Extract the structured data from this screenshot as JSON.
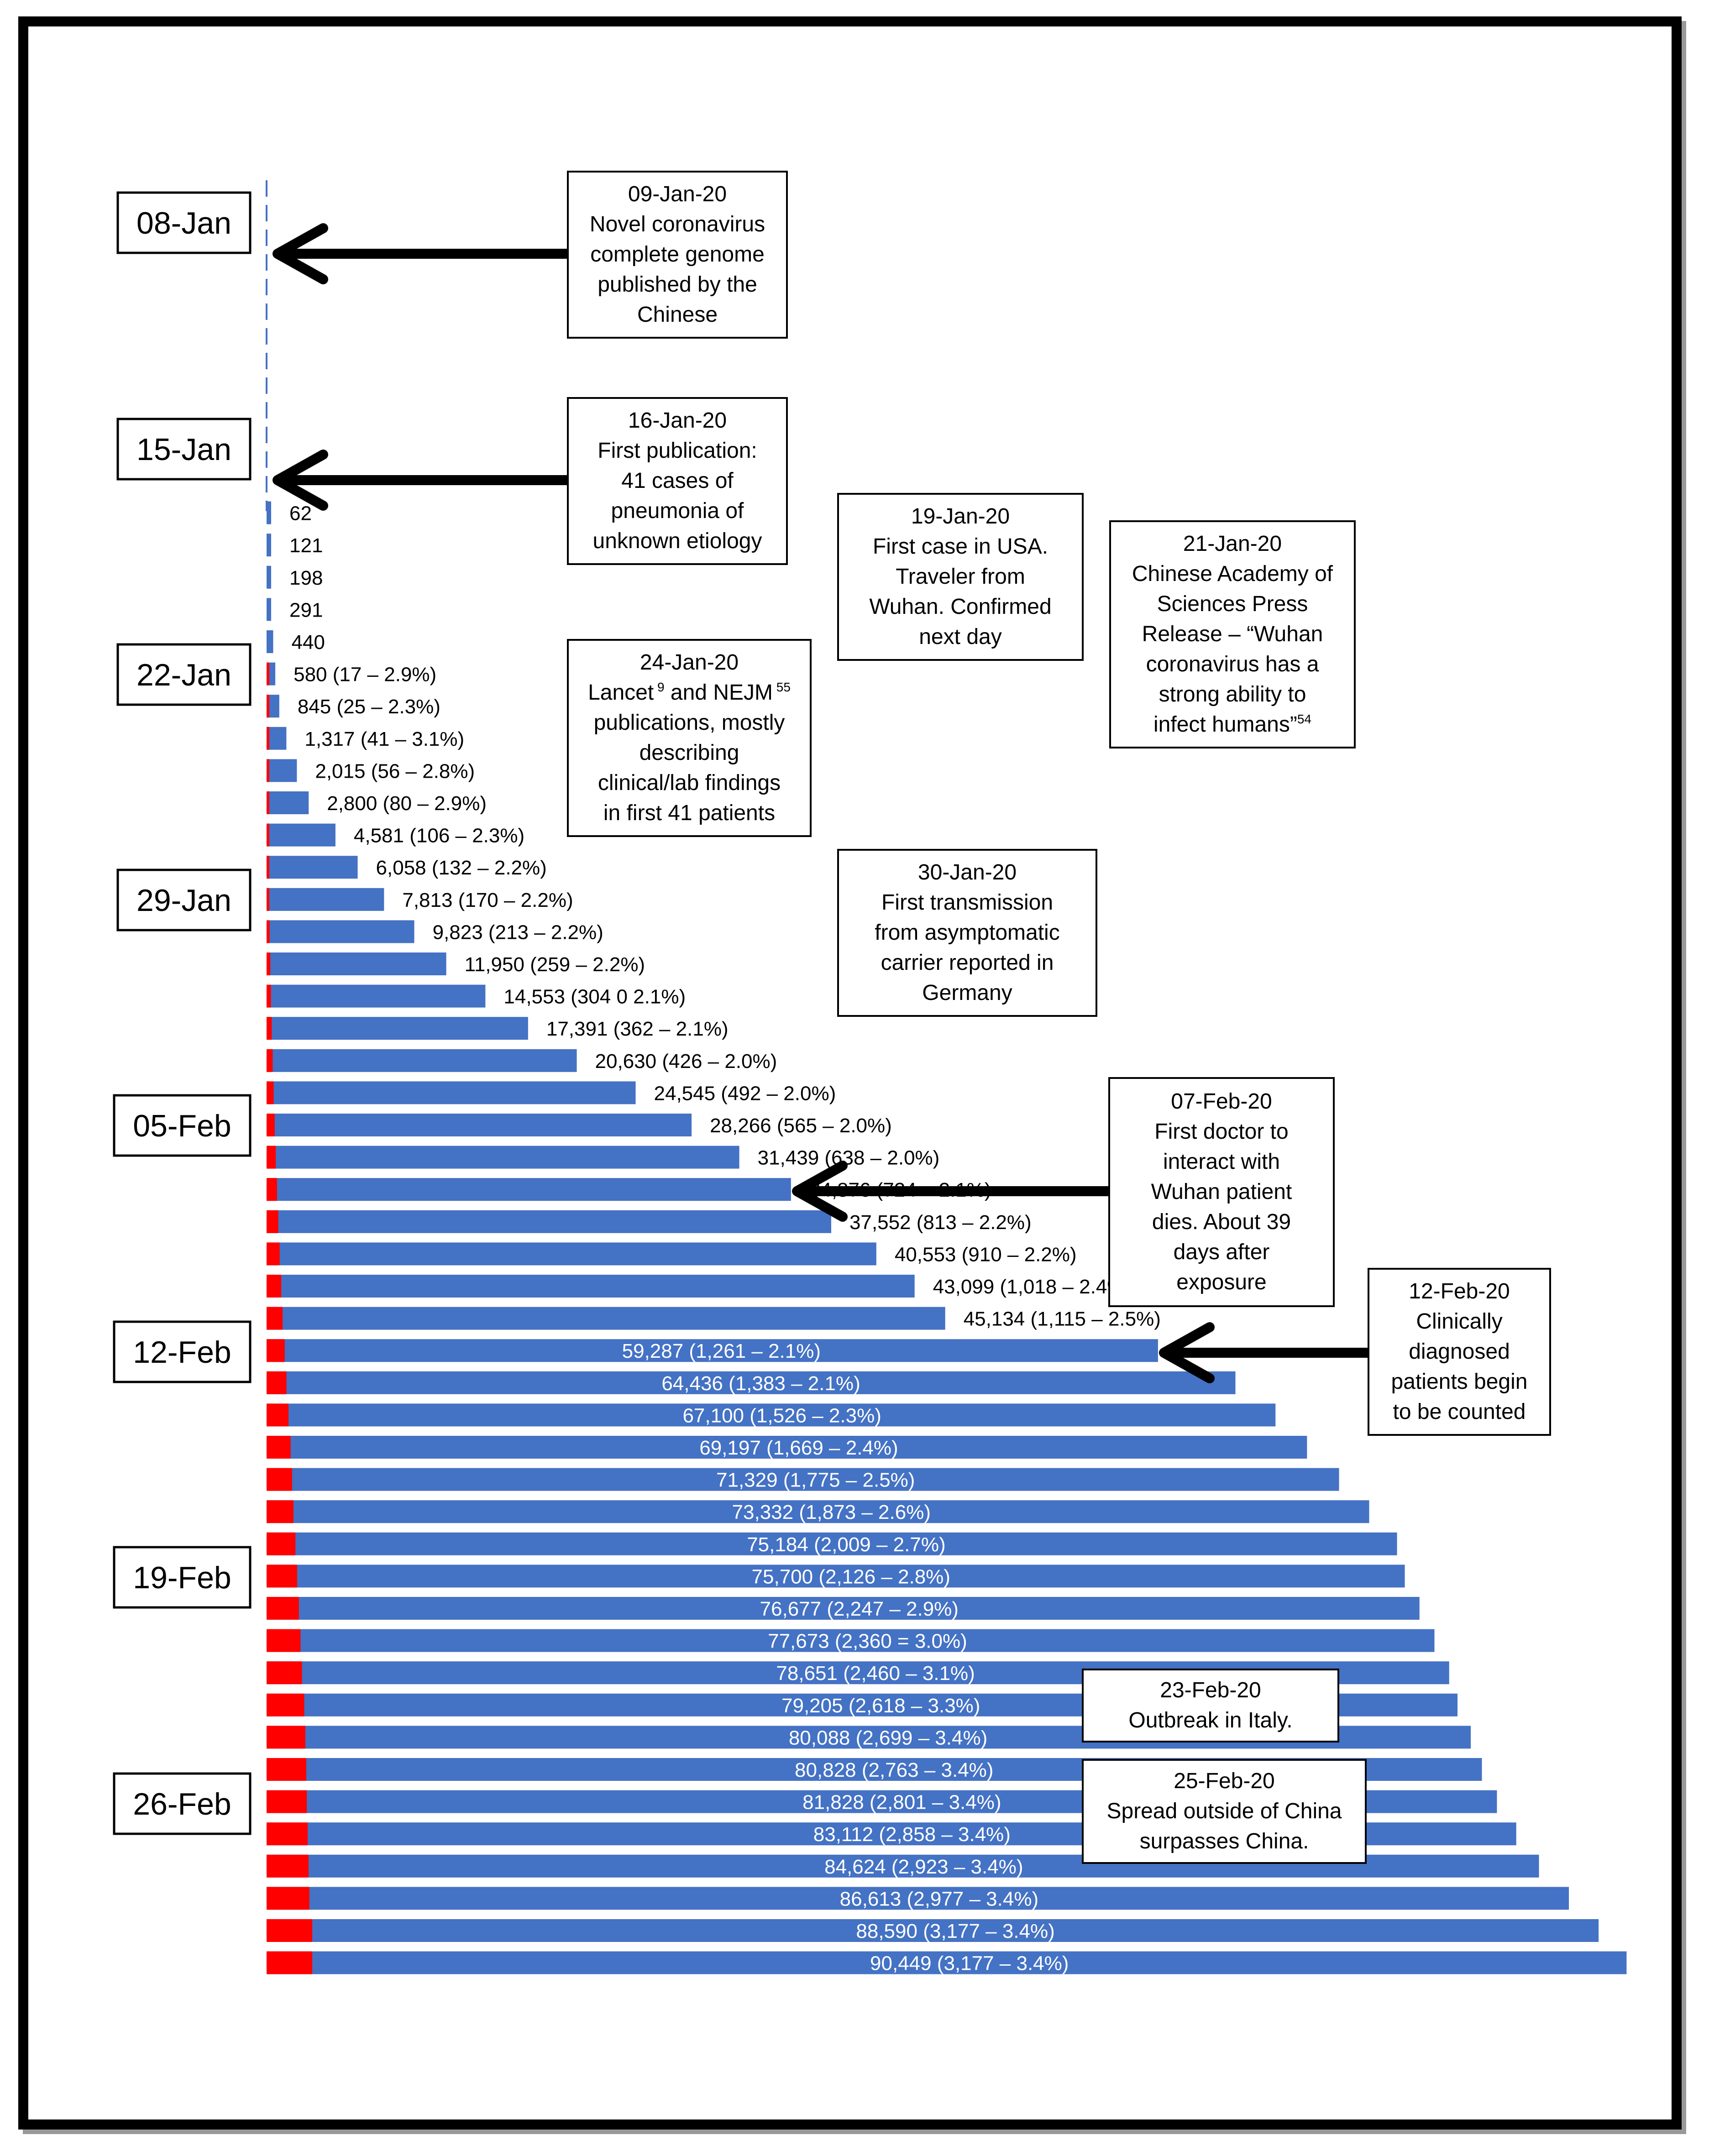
{
  "colors": {
    "bar": "#4472C4",
    "deaths": "#FF0000",
    "axis": "#4472C4",
    "arrow": "#000000"
  },
  "chart_data": {
    "type": "bar",
    "orientation": "horizontal",
    "stacked": true,
    "title": "",
    "xlabel": "",
    "ylabel": "",
    "x_max": 90449,
    "series": [
      {
        "name": "Confirmed cases",
        "color": "#4472C4"
      },
      {
        "name": "Deaths",
        "color": "#FF0000"
      }
    ],
    "rows": [
      {
        "date": "16-Jan",
        "cases": 0,
        "deaths": 0,
        "label": ""
      },
      {
        "date": "17-Jan",
        "cases": 62,
        "deaths": 0,
        "label": "62"
      },
      {
        "date": "18-Jan",
        "cases": 121,
        "deaths": 0,
        "label": "121"
      },
      {
        "date": "19-Jan",
        "cases": 198,
        "deaths": 0,
        "label": "198"
      },
      {
        "date": "20-Jan",
        "cases": 291,
        "deaths": 0,
        "label": "291"
      },
      {
        "date": "21-Jan",
        "cases": 440,
        "deaths": 0,
        "label": "440"
      },
      {
        "date": "22-Jan",
        "cases": 580,
        "deaths": 17,
        "label": "580 (17 – 2.9%)"
      },
      {
        "date": "23-Jan",
        "cases": 845,
        "deaths": 25,
        "label": "845 (25 – 2.3%)"
      },
      {
        "date": "24-Jan",
        "cases": 1317,
        "deaths": 41,
        "label": "1,317 (41 – 3.1%)"
      },
      {
        "date": "25-Jan",
        "cases": 2015,
        "deaths": 56,
        "label": "2,015 (56 – 2.8%)"
      },
      {
        "date": "26-Jan",
        "cases": 2800,
        "deaths": 80,
        "label": "2,800 (80 – 2.9%)"
      },
      {
        "date": "27-Jan",
        "cases": 4581,
        "deaths": 106,
        "label": "4,581 (106 – 2.3%)"
      },
      {
        "date": "28-Jan",
        "cases": 6058,
        "deaths": 132,
        "label": "6,058 (132 – 2.2%)"
      },
      {
        "date": "29-Jan",
        "cases": 7813,
        "deaths": 170,
        "label": "7,813 (170 – 2.2%)"
      },
      {
        "date": "30-Jan",
        "cases": 9823,
        "deaths": 213,
        "label": "9,823 (213 – 2.2%)"
      },
      {
        "date": "31-Jan",
        "cases": 11950,
        "deaths": 259,
        "label": "11,950 (259 – 2.2%)"
      },
      {
        "date": "01-Feb",
        "cases": 14553,
        "deaths": 304,
        "label": "14,553 (304 0 2.1%)"
      },
      {
        "date": "02-Feb",
        "cases": 17391,
        "deaths": 362,
        "label": "17,391 (362 – 2.1%)"
      },
      {
        "date": "03-Feb",
        "cases": 20630,
        "deaths": 426,
        "label": "20,630 (426 – 2.0%)"
      },
      {
        "date": "04-Feb",
        "cases": 24545,
        "deaths": 492,
        "label": "24,545 (492 – 2.0%)"
      },
      {
        "date": "05-Feb",
        "cases": 28266,
        "deaths": 565,
        "label": "28,266 (565 – 2.0%)"
      },
      {
        "date": "06-Feb",
        "cases": 31439,
        "deaths": 638,
        "label": "31,439 (638 – 2.0%)"
      },
      {
        "date": "07-Feb",
        "cases": 34876,
        "deaths": 724,
        "label": "34,876 (724 – 2.1%)"
      },
      {
        "date": "08-Feb",
        "cases": 37552,
        "deaths": 813,
        "label": "37,552 (813 – 2.2%)"
      },
      {
        "date": "09-Feb",
        "cases": 40553,
        "deaths": 910,
        "label": "40,553 (910 – 2.2%)"
      },
      {
        "date": "10-Feb",
        "cases": 43099,
        "deaths": 1018,
        "label": "43,099 (1,018 – 2.4%)"
      },
      {
        "date": "11-Feb",
        "cases": 45134,
        "deaths": 1115,
        "label": "45,134 (1,115 – 2.5%)"
      },
      {
        "date": "12-Feb",
        "cases": 59287,
        "deaths": 1261,
        "label": "59,287 (1,261 – 2.1%)"
      },
      {
        "date": "13-Feb",
        "cases": 64436,
        "deaths": 1383,
        "label": "64,436 (1,383 – 2.1%)"
      },
      {
        "date": "14-Feb",
        "cases": 67100,
        "deaths": 1526,
        "label": "67,100 (1,526 – 2.3%)"
      },
      {
        "date": "15-Feb",
        "cases": 69197,
        "deaths": 1669,
        "label": "69,197 (1,669 – 2.4%)"
      },
      {
        "date": "16-Feb",
        "cases": 71329,
        "deaths": 1775,
        "label": "71,329 (1,775 – 2.5%)"
      },
      {
        "date": "17-Feb",
        "cases": 73332,
        "deaths": 1873,
        "label": "73,332 (1,873 – 2.6%)"
      },
      {
        "date": "18-Feb",
        "cases": 75184,
        "deaths": 2009,
        "label": "75,184 (2,009 – 2.7%)"
      },
      {
        "date": "19-Feb",
        "cases": 75700,
        "deaths": 2126,
        "label": "75,700 (2,126 – 2.8%)"
      },
      {
        "date": "20-Feb",
        "cases": 76677,
        "deaths": 2247,
        "label": "76,677 (2,247 – 2.9%)"
      },
      {
        "date": "21-Feb",
        "cases": 77673,
        "deaths": 2360,
        "label": "77,673 (2,360 = 3.0%)"
      },
      {
        "date": "22-Feb",
        "cases": 78651,
        "deaths": 2460,
        "label": "78,651 (2,460 – 3.1%)"
      },
      {
        "date": "23-Feb",
        "cases": 79205,
        "deaths": 2618,
        "label": "79,205 (2,618 – 3.3%)"
      },
      {
        "date": "24-Feb",
        "cases": 80088,
        "deaths": 2699,
        "label": "80,088 (2,699 – 3.4%)"
      },
      {
        "date": "25-Feb",
        "cases": 80828,
        "deaths": 2763,
        "label": "80,828 (2,763 – 3.4%)"
      },
      {
        "date": "26-Feb",
        "cases": 81828,
        "deaths": 2801,
        "label": "81,828 (2,801 – 3.4%)"
      },
      {
        "date": "27-Feb",
        "cases": 83112,
        "deaths": 2858,
        "label": "83,112 (2,858 – 3.4%)"
      },
      {
        "date": "28-Feb",
        "cases": 84624,
        "deaths": 2923,
        "label": "84,624 (2,923 – 3.4%)"
      },
      {
        "date": "29-Feb",
        "cases": 86613,
        "deaths": 2977,
        "label": "86,613 (2,977 – 3.4%)"
      },
      {
        "date": "01-Mar",
        "cases": 88590,
        "deaths": 3177,
        "label": "88,590 (3,177 – 3.4%)"
      },
      {
        "date": "02-Mar",
        "cases": 90449,
        "deaths": 3177,
        "label": "90,449 (3,177 – 3.4%)"
      }
    ],
    "date_labels": [
      "08-Jan",
      "15-Jan",
      "22-Jan",
      "29-Jan",
      "05-Feb",
      "12-Feb",
      "19-Feb",
      "26-Feb"
    ],
    "annotations": [
      {
        "lines": [
          "09-Jan-20",
          "Novel coronavirus",
          "complete genome",
          "published by the",
          "Chinese"
        ],
        "arrow": true
      },
      {
        "lines": [
          "16-Jan-20",
          "First publication:",
          "41 cases of",
          "pneumonia of",
          "unknown etiology"
        ],
        "arrow": true
      },
      {
        "lines": [
          "19-Jan-20",
          "First case in USA.",
          "Traveler from",
          "Wuhan. Confirmed",
          "next day"
        ],
        "arrow": false
      },
      {
        "lines": [
          "21-Jan-20",
          "Chinese Academy of",
          "Sciences Press",
          "Release – “Wuhan",
          "coronavirus has a",
          "strong ability to",
          "infect humans”"
        ],
        "sup": "54",
        "arrow": false
      },
      {
        "lines": [
          "24-Jan-20",
          "Lancet",
          "publications, mostly",
          "describing",
          "clinical/lab findings",
          "in first 41 patients"
        ],
        "line2": {
          "a": "Lancet",
          "supA": "9",
          "b": "and NEJM",
          "supB": "55"
        },
        "arrow": false
      },
      {
        "lines": [
          "30-Jan-20",
          "First transmission",
          "from asymptomatic",
          "carrier reported in",
          "Germany"
        ],
        "arrow": false
      },
      {
        "lines": [
          "07-Feb-20",
          "First doctor to",
          "interact with",
          "Wuhan patient",
          "dies. About 39",
          "days after",
          "exposure"
        ],
        "arrow": true
      },
      {
        "lines": [
          "12-Feb-20",
          "Clinically",
          "diagnosed",
          "patients begin",
          "to be counted"
        ],
        "arrow": true
      },
      {
        "lines": [
          "23-Feb-20",
          "Outbreak in Italy."
        ],
        "arrow": false
      },
      {
        "lines": [
          "25-Feb-20",
          "Spread outside of China",
          "surpasses China."
        ],
        "arrow": false
      }
    ]
  }
}
